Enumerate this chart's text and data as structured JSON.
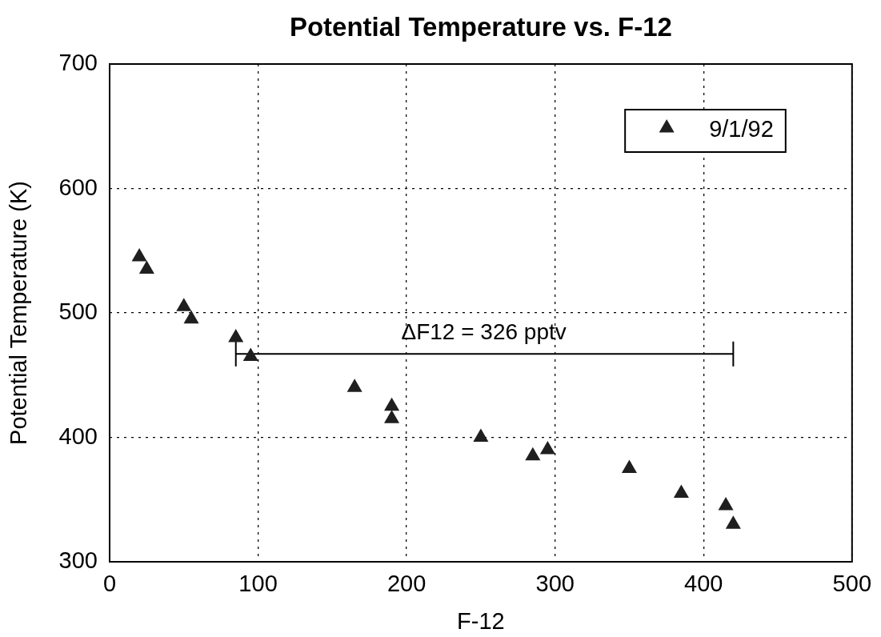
{
  "chart_data": {
    "type": "scatter",
    "title": "Potential Temperature vs. F-12",
    "xlabel": "F-12",
    "ylabel": "Potential Temperature (K)",
    "series": [
      {
        "name": "9/1/92",
        "color": "#1f1f1f",
        "marker": "triangle",
        "x": [
          20,
          25,
          50,
          55,
          85,
          95,
          165,
          190,
          190,
          250,
          285,
          295,
          350,
          385,
          415,
          420
        ],
        "values": [
          545,
          535,
          505,
          495,
          480,
          465,
          440,
          425,
          415,
          400,
          385,
          390,
          375,
          355,
          345,
          330
        ]
      },
      {
        "type": "line",
        "color": "#000000",
        "marker": "none",
        "x": [
          85,
          420
        ],
        "values": [
          467,
          467
        ],
        "errors": [
          10,
          10
        ]
      }
    ],
    "xlim": [
      0,
      500
    ],
    "xticks": [
      0,
      100,
      200,
      300,
      400,
      500
    ],
    "ylim": [
      300,
      700
    ],
    "yticks": [
      300,
      400,
      500,
      600,
      700
    ],
    "grid": true,
    "legend": "top right",
    "annotations": [
      {
        "text": "ΔF12 = 326 pptv",
        "x": 252,
        "y": 467
      }
    ]
  }
}
